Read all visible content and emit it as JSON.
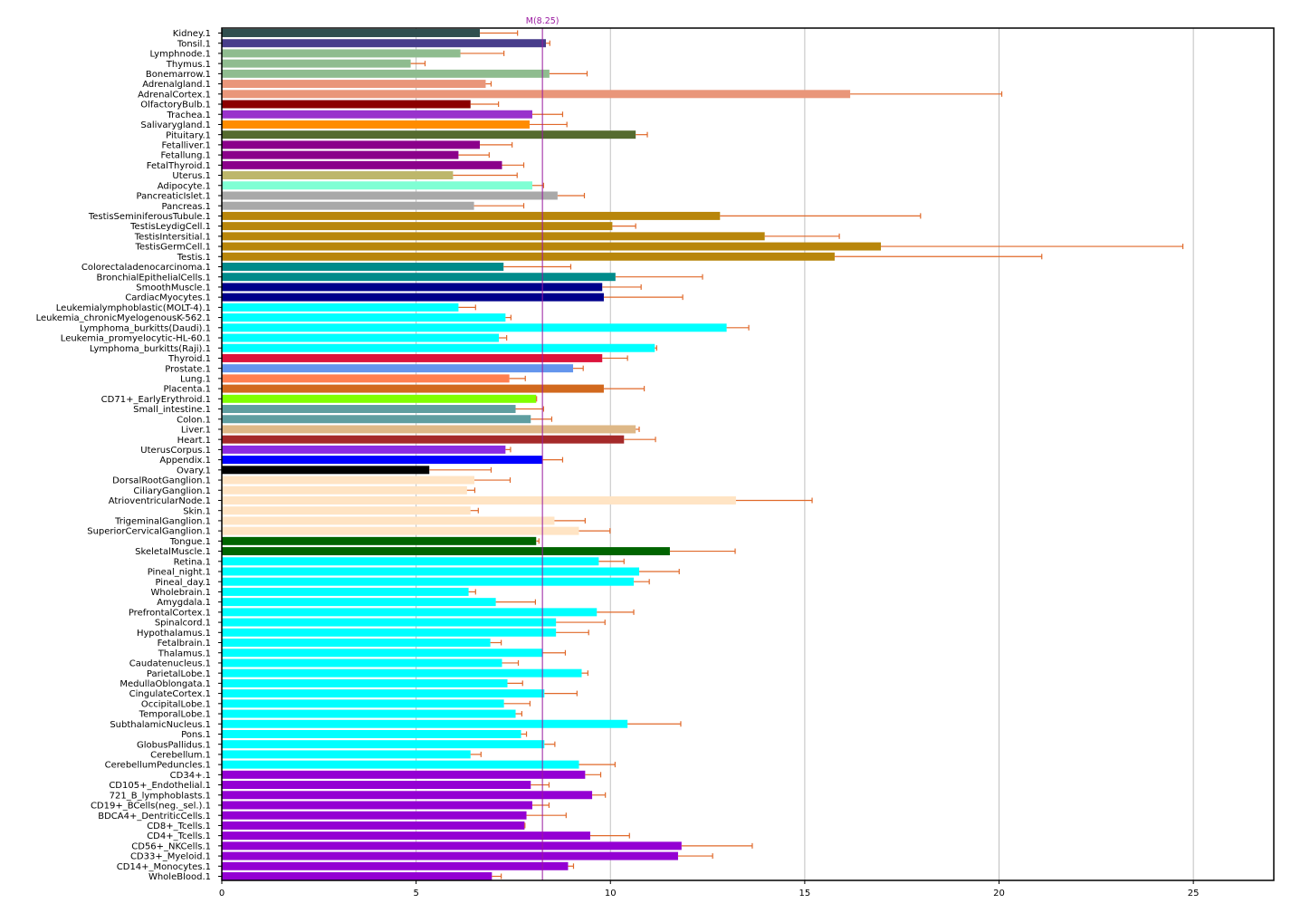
{
  "chart_data": {
    "type": "bar",
    "orientation": "horizontal",
    "title": "",
    "xlabel": "",
    "ylabel": "",
    "xlim": [
      0,
      27.07
    ],
    "xticks": [
      0,
      5,
      10,
      15,
      20,
      25
    ],
    "grid": "vertical",
    "mean_line": {
      "value": 8.25,
      "label": "M(8.25)",
      "color": "#9a1aa0"
    },
    "error_color": "#e0692a",
    "categories": [
      {
        "label": "Kidney.1",
        "value": 6.64,
        "err_upper": 7.61,
        "color": "#2F4F4F"
      },
      {
        "label": "Tonsil.1",
        "value": 8.34,
        "err_upper": 8.44,
        "color": "#483D8B"
      },
      {
        "label": "Lymphnode.1",
        "value": 6.14,
        "err_upper": 7.26,
        "color": "#8FBC8F"
      },
      {
        "label": "Thymus.1",
        "value": 4.86,
        "err_upper": 5.23,
        "color": "#8FBC8F"
      },
      {
        "label": "Bonemarrow.1",
        "value": 8.43,
        "err_upper": 9.4,
        "color": "#8FBC8F"
      },
      {
        "label": "Adrenalgland.1",
        "value": 6.79,
        "err_upper": 6.93,
        "color": "#E9967A"
      },
      {
        "label": "AdrenalCortex.1",
        "value": 16.17,
        "err_upper": 20.07,
        "color": "#E9967A"
      },
      {
        "label": "OlfactoryBulb.1",
        "value": 6.4,
        "err_upper": 7.12,
        "color": "#8B0000"
      },
      {
        "label": "Trachea.1",
        "value": 7.99,
        "err_upper": 8.77,
        "color": "#9932CC"
      },
      {
        "label": "Salivarygland.1",
        "value": 7.92,
        "err_upper": 8.88,
        "color": "#FF8C00"
      },
      {
        "label": "Pituitary.1",
        "value": 10.65,
        "err_upper": 10.95,
        "color": "#556B2F"
      },
      {
        "label": "Fetalliver.1",
        "value": 6.64,
        "err_upper": 7.47,
        "color": "#8B008B"
      },
      {
        "label": "Fetallung.1",
        "value": 6.09,
        "err_upper": 6.88,
        "color": "#8B008B"
      },
      {
        "label": "FetalThyroid.1",
        "value": 7.21,
        "err_upper": 7.77,
        "color": "#8B008B"
      },
      {
        "label": "Uterus.1",
        "value": 5.95,
        "err_upper": 7.6,
        "color": "#BDB76B"
      },
      {
        "label": "Adipocyte.1",
        "value": 7.99,
        "err_upper": 8.28,
        "color": "#7FFFD4"
      },
      {
        "label": "PancreaticIslet.1",
        "value": 8.64,
        "err_upper": 9.33,
        "color": "#A9A9A9"
      },
      {
        "label": "Pancreas.1",
        "value": 6.49,
        "err_upper": 7.77,
        "color": "#A9A9A9"
      },
      {
        "label": "TestisSeminiferousTubule.1",
        "value": 12.82,
        "err_upper": 17.98,
        "color": "#B8860B"
      },
      {
        "label": "TestisLeydigCell.1",
        "value": 10.05,
        "err_upper": 10.65,
        "color": "#B8860B"
      },
      {
        "label": "TestisIntersitial.1",
        "value": 13.97,
        "err_upper": 15.89,
        "color": "#B8860B"
      },
      {
        "label": "TestisGermCell.1",
        "value": 16.96,
        "err_upper": 24.73,
        "color": "#B8860B"
      },
      {
        "label": "Testis.1",
        "value": 15.77,
        "err_upper": 21.1,
        "color": "#B8860B"
      },
      {
        "label": "Colorectaladenocarcinoma.1",
        "value": 7.25,
        "err_upper": 8.98,
        "color": "#008B8B"
      },
      {
        "label": "BronchialEpithelialCells.1",
        "value": 10.13,
        "err_upper": 12.37,
        "color": "#008B8B"
      },
      {
        "label": "SmoothMuscle.1",
        "value": 9.79,
        "err_upper": 10.79,
        "color": "#00008B"
      },
      {
        "label": "CardiacMyocytes.1",
        "value": 9.83,
        "err_upper": 11.86,
        "color": "#00008B"
      },
      {
        "label": "Leukemialymphoblastic(MOLT-4).1",
        "value": 6.09,
        "err_upper": 6.53,
        "color": "#00FFFF"
      },
      {
        "label": "Leukemia_chronicMyelogenousK-562.1",
        "value": 7.3,
        "err_upper": 7.44,
        "color": "#00FFFF"
      },
      {
        "label": "Lymphoma_burkitts(Daudi).1",
        "value": 12.99,
        "err_upper": 13.56,
        "color": "#00FFFF"
      },
      {
        "label": "Leukemia_promyelocytic-HL-60.1",
        "value": 7.13,
        "err_upper": 7.33,
        "color": "#00FFFF"
      },
      {
        "label": "Lymphoma_burkitts(Raji).1",
        "value": 11.14,
        "err_upper": 11.19,
        "color": "#00FFFF"
      },
      {
        "label": "Thyroid.1",
        "value": 9.79,
        "err_upper": 10.44,
        "color": "#DC143C"
      },
      {
        "label": "Prostate.1",
        "value": 9.04,
        "err_upper": 9.3,
        "color": "#6495ED"
      },
      {
        "label": "Lung.1",
        "value": 7.4,
        "err_upper": 7.81,
        "color": "#FF7F50"
      },
      {
        "label": "Placenta.1",
        "value": 9.83,
        "err_upper": 10.87,
        "color": "#D2691E"
      },
      {
        "label": "CD71+_EarlyErythroid.1",
        "value": 8.09,
        "err_upper": 8.1,
        "color": "#7FFF00"
      },
      {
        "label": "Small_intestine.1",
        "value": 7.56,
        "err_upper": 8.28,
        "color": "#5F9EA0"
      },
      {
        "label": "Colon.1",
        "value": 7.95,
        "err_upper": 8.49,
        "color": "#5F9EA0"
      },
      {
        "label": "Liver.1",
        "value": 10.65,
        "err_upper": 10.74,
        "color": "#DEB887"
      },
      {
        "label": "Heart.1",
        "value": 10.35,
        "err_upper": 11.16,
        "color": "#A52A2A"
      },
      {
        "label": "UterusCorpus.1",
        "value": 7.3,
        "err_upper": 7.43,
        "color": "#8A2BE2"
      },
      {
        "label": "Appendix.1",
        "value": 8.26,
        "err_upper": 8.77,
        "color": "#0000FF"
      },
      {
        "label": "Ovary.1",
        "value": 5.34,
        "err_upper": 6.93,
        "color": "#000000"
      },
      {
        "label": "DorsalRootGanglion.1",
        "value": 6.5,
        "err_upper": 7.42,
        "color": "#FFE4C4"
      },
      {
        "label": "CiliaryGanglion.1",
        "value": 6.31,
        "err_upper": 6.51,
        "color": "#FFE4C4"
      },
      {
        "label": "AtrioventricularNode.1",
        "value": 13.23,
        "err_upper": 15.19,
        "color": "#FFE4C4"
      },
      {
        "label": "Skin.1",
        "value": 6.4,
        "err_upper": 6.6,
        "color": "#FFE4C4"
      },
      {
        "label": "TrigeminalGanglion.1",
        "value": 8.56,
        "err_upper": 9.35,
        "color": "#FFE4C4"
      },
      {
        "label": "SuperiorCervicalGanglion.1",
        "value": 9.19,
        "err_upper": 9.99,
        "color": "#FFE4C4"
      },
      {
        "label": "Tongue.1",
        "value": 8.09,
        "err_upper": 8.16,
        "color": "#006400"
      },
      {
        "label": "SkeletalMuscle.1",
        "value": 11.53,
        "err_upper": 13.21,
        "color": "#006400"
      },
      {
        "label": "Retina.1",
        "value": 9.7,
        "err_upper": 10.35,
        "color": "#00FFFF"
      },
      {
        "label": "Pineal_night.1",
        "value": 10.74,
        "err_upper": 11.77,
        "color": "#00FFFF"
      },
      {
        "label": "Pineal_day.1",
        "value": 10.6,
        "err_upper": 11.0,
        "color": "#00FFFF"
      },
      {
        "label": "Wholebrain.1",
        "value": 6.35,
        "err_upper": 6.53,
        "color": "#00FFFF"
      },
      {
        "label": "Amygdala.1",
        "value": 7.05,
        "err_upper": 8.07,
        "color": "#00FFFF"
      },
      {
        "label": "PrefrontalCortex.1",
        "value": 9.65,
        "err_upper": 10.6,
        "color": "#00FFFF"
      },
      {
        "label": "Spinalcord.1",
        "value": 8.6,
        "err_upper": 9.86,
        "color": "#00FFFF"
      },
      {
        "label": "Hypothalamus.1",
        "value": 8.6,
        "err_upper": 9.44,
        "color": "#00FFFF"
      },
      {
        "label": "Fetalbrain.1",
        "value": 6.91,
        "err_upper": 7.19,
        "color": "#00FFFF"
      },
      {
        "label": "Thalamus.1",
        "value": 8.26,
        "err_upper": 8.84,
        "color": "#00FFFF"
      },
      {
        "label": "Caudatenucleus.1",
        "value": 7.21,
        "err_upper": 7.63,
        "color": "#00FFFF"
      },
      {
        "label": "ParietalLobe.1",
        "value": 9.26,
        "err_upper": 9.42,
        "color": "#00FFFF"
      },
      {
        "label": "MedullaOblongata.1",
        "value": 7.35,
        "err_upper": 7.74,
        "color": "#00FFFF"
      },
      {
        "label": "CingulateCortex.1",
        "value": 8.3,
        "err_upper": 9.14,
        "color": "#00FFFF"
      },
      {
        "label": "OccipitalLobe.1",
        "value": 7.26,
        "err_upper": 7.93,
        "color": "#00FFFF"
      },
      {
        "label": "TemporalLobe.1",
        "value": 7.56,
        "err_upper": 7.72,
        "color": "#00FFFF"
      },
      {
        "label": "SubthalamicNucleus.1",
        "value": 10.44,
        "err_upper": 11.81,
        "color": "#00FFFF"
      },
      {
        "label": "Pons.1",
        "value": 7.7,
        "err_upper": 7.84,
        "color": "#00FFFF"
      },
      {
        "label": "GlobusPallidus.1",
        "value": 8.3,
        "err_upper": 8.57,
        "color": "#00FFFF"
      },
      {
        "label": "Cerebellum.1",
        "value": 6.4,
        "err_upper": 6.67,
        "color": "#00FFFF"
      },
      {
        "label": "CerebellumPeduncles.1",
        "value": 9.19,
        "err_upper": 10.12,
        "color": "#00FFFF"
      },
      {
        "label": "CD34+.1",
        "value": 9.35,
        "err_upper": 9.75,
        "color": "#9400D3"
      },
      {
        "label": "CD105+_Endothelial.1",
        "value": 7.95,
        "err_upper": 8.42,
        "color": "#9400D3"
      },
      {
        "label": "721_B_lymphoblasts.1",
        "value": 9.53,
        "err_upper": 9.87,
        "color": "#9400D3"
      },
      {
        "label": "CD19+_BCells(neg._sel.).1",
        "value": 7.99,
        "err_upper": 8.42,
        "color": "#9400D3"
      },
      {
        "label": "BDCA4+_DentriticCells.1",
        "value": 7.84,
        "err_upper": 8.86,
        "color": "#9400D3"
      },
      {
        "label": "CD8+_Tcells.1",
        "value": 7.79,
        "err_upper": 7.8,
        "color": "#9400D3"
      },
      {
        "label": "CD4+_Tcells.1",
        "value": 9.48,
        "err_upper": 10.49,
        "color": "#9400D3"
      },
      {
        "label": "CD56+_NKCells.1",
        "value": 11.83,
        "err_upper": 13.65,
        "color": "#9400D3"
      },
      {
        "label": "CD33+_Myeloid.1",
        "value": 11.74,
        "err_upper": 12.63,
        "color": "#9400D3"
      },
      {
        "label": "CD14+_Monocytes.1",
        "value": 8.91,
        "err_upper": 9.05,
        "color": "#9400D3"
      },
      {
        "label": "WholeBlood.1",
        "value": 6.95,
        "err_upper": 7.19,
        "color": "#9400D3"
      }
    ]
  }
}
